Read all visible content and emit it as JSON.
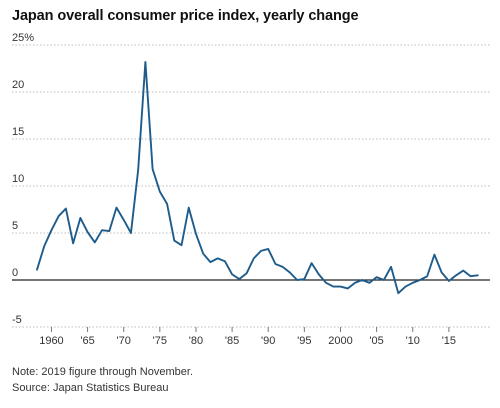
{
  "chart_data": {
    "type": "line",
    "title": "Japan overall consumer price index, yearly change",
    "xlabel": "",
    "ylabel": "",
    "x_tick_labels": [
      {
        "year": 1960,
        "label": "1960"
      },
      {
        "year": 1965,
        "label": "'65"
      },
      {
        "year": 1970,
        "label": "'70"
      },
      {
        "year": 1975,
        "label": "'75"
      },
      {
        "year": 1980,
        "label": "'80"
      },
      {
        "year": 1985,
        "label": "'85"
      },
      {
        "year": 1990,
        "label": "'90"
      },
      {
        "year": 1995,
        "label": "'95"
      },
      {
        "year": 2000,
        "label": "2000"
      },
      {
        "year": 2005,
        "label": "'05"
      },
      {
        "year": 2010,
        "label": "'10"
      },
      {
        "year": 2015,
        "label": "'15"
      }
    ],
    "y_tick_labels": [
      {
        "value": 25,
        "label": "25%"
      },
      {
        "value": 20,
        "label": "20"
      },
      {
        "value": 15,
        "label": "15"
      },
      {
        "value": 10,
        "label": "10"
      },
      {
        "value": 5,
        "label": "5"
      },
      {
        "value": 0,
        "label": "0"
      },
      {
        "value": -5,
        "label": "-5"
      }
    ],
    "xlim": [
      1958,
      2020
    ],
    "ylim": [
      -5,
      25
    ],
    "grid": "horizontal",
    "zero_line": true,
    "line_color": "#1f5c8b",
    "series": [
      {
        "x": [
          1958,
          1959,
          1960,
          1961,
          1962,
          1963,
          1964,
          1965,
          1966,
          1967,
          1968,
          1969,
          1970,
          1971,
          1972,
          1973,
          1974,
          1975,
          1976,
          1977,
          1978,
          1979,
          1980,
          1981,
          1982,
          1983,
          1984,
          1985,
          1986,
          1987,
          1988,
          1989,
          1990,
          1991,
          1992,
          1993,
          1994,
          1995,
          1996,
          1997,
          1998,
          1999,
          2000,
          2001,
          2002,
          2003,
          2004,
          2005,
          2006,
          2007,
          2008,
          2009,
          2010,
          2011,
          2012,
          2013,
          2014,
          2015,
          2016,
          2017,
          2018,
          2019
        ],
        "values": [
          1.1,
          3.6,
          5.3,
          6.8,
          7.6,
          3.9,
          6.6,
          5.1,
          4.0,
          5.3,
          5.2,
          7.7,
          6.4,
          5.0,
          11.7,
          23.2,
          11.8,
          9.4,
          8.1,
          4.2,
          3.7,
          7.7,
          4.9,
          2.8,
          1.9,
          2.3,
          2.0,
          0.6,
          0.1,
          0.7,
          2.3,
          3.1,
          3.3,
          1.7,
          1.4,
          0.8,
          0.0,
          0.1,
          1.8,
          0.6,
          -0.3,
          -0.7,
          -0.7,
          -0.9,
          -0.3,
          0.0,
          -0.3,
          0.3,
          0.0,
          1.4,
          -1.4,
          -0.7,
          -0.3,
          0.0,
          0.4,
          2.7,
          0.8,
          -0.1,
          0.5,
          1.0,
          0.4,
          0.5
        ]
      }
    ],
    "note": "Note: 2019 figure through November.",
    "source": "Source: Japan Statistics Bureau"
  }
}
